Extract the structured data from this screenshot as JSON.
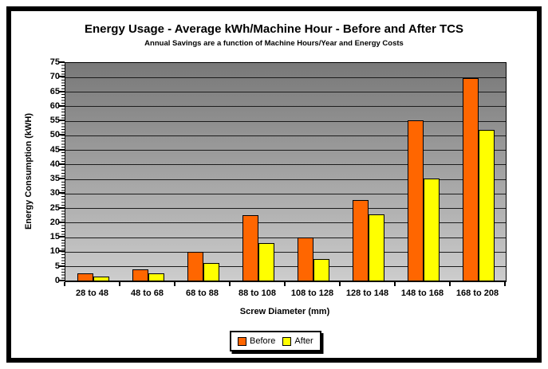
{
  "chart_data": {
    "type": "bar",
    "title": "Energy Usage - Average kWh/Machine Hour - Before and After TCS",
    "subtitle": "Annual Savings are a function of Machine Hours/Year and Energy Costs",
    "xlabel": "Screw Diameter (mm)",
    "ylabel": "Energy Consumption (kWH)",
    "ylim": [
      0,
      75
    ],
    "ytick_step": 5,
    "grid": true,
    "legend_position": "bottom-center",
    "plot_bg_gradient_top": "#787878",
    "plot_bg_gradient_bottom": "#cdcdcd",
    "categories": [
      "28 to 48",
      "48 to 68",
      "68 to 88",
      "88 to 108",
      "108 to 128",
      "128 to 148",
      "148 to 168",
      "168 to 208"
    ],
    "series": [
      {
        "name": "Before",
        "color": "#FF6600",
        "values": [
          2.7,
          4.1,
          10.2,
          22.8,
          15.1,
          27.8,
          55.4,
          69.7
        ]
      },
      {
        "name": "After",
        "color": "#FFFF00",
        "values": [
          1.7,
          2.7,
          6.2,
          13.1,
          7.8,
          22.9,
          35.3,
          51.9
        ]
      }
    ]
  }
}
